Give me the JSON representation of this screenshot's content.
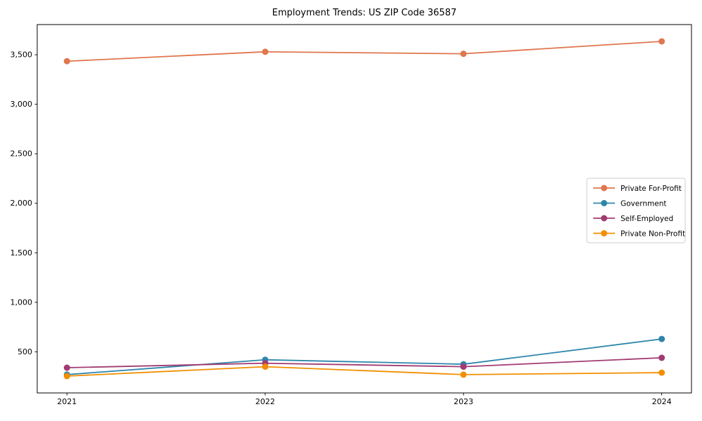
{
  "title": "Employment Trends: US ZIP Code 36587",
  "chart_data": {
    "type": "line",
    "title": "Employment Trends: US ZIP Code 36587",
    "categories": [
      "2021",
      "2022",
      "2023",
      "2024"
    ],
    "series": [
      {
        "name": "Private For-Profit",
        "color": "#E0764E",
        "values": [
          3435,
          3530,
          3510,
          3635
        ]
      },
      {
        "name": "Government",
        "color": "#2E86AB",
        "values": [
          270,
          420,
          375,
          630
        ]
      },
      {
        "name": "Self-Employed",
        "color": "#A23B72",
        "values": [
          340,
          385,
          350,
          440
        ]
      },
      {
        "name": "Private Non-Profit",
        "color": "#F18F01",
        "values": [
          255,
          350,
          270,
          290
        ]
      }
    ],
    "xlabel": "",
    "ylabel": "",
    "ylim": [
      85,
      3805
    ],
    "yticks": [
      500,
      1000,
      1500,
      2000,
      2500,
      3000,
      3500
    ],
    "ytick_labels": [
      "500",
      "1,000",
      "1,500",
      "2,000",
      "2,500",
      "3,000",
      "3,500"
    ],
    "grid": false,
    "legend_position": "center right",
    "marker": "circle",
    "line_width": 1.8,
    "marker_radius": 4.5,
    "frame_color": "#000000",
    "background_color": "#ffffff"
  }
}
